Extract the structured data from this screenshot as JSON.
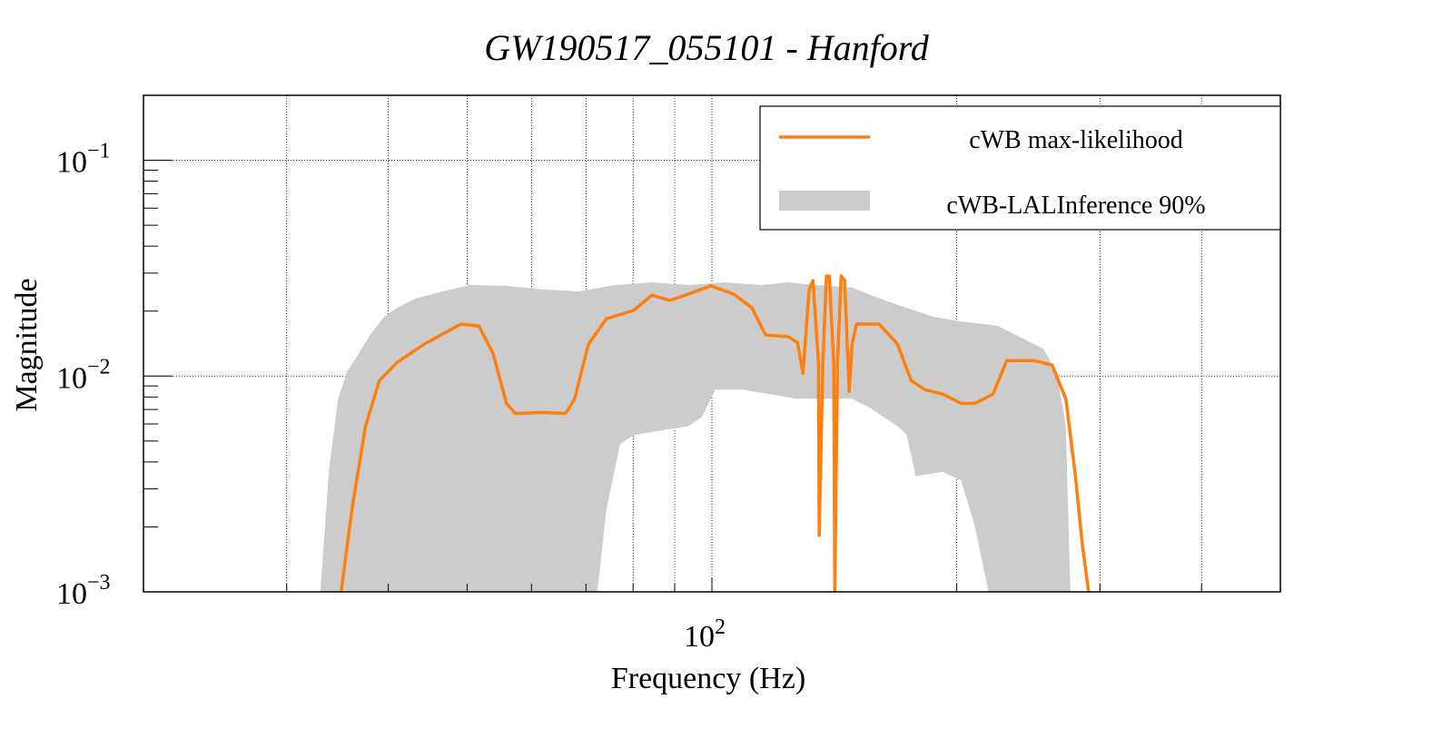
{
  "chart_data": {
    "type": "line",
    "title": "GW190517_055101 - Hanford",
    "xlabel": "Frequency (Hz)",
    "ylabel": "Magnitude",
    "xscale": "log",
    "yscale": "log",
    "xlim": [
      20,
      500
    ],
    "ylim": [
      0.001,
      0.2
    ],
    "grid": true,
    "legend_position": "top-right",
    "x_tick_labels": [
      {
        "base": "10",
        "exp": "2",
        "value": 100
      }
    ],
    "y_tick_labels": [
      {
        "base": "10",
        "exp": "−1",
        "value": 0.1
      },
      {
        "base": "10",
        "exp": "−2",
        "value": 0.01
      },
      {
        "base": "10",
        "exp": "−3",
        "value": 0.001
      }
    ],
    "colors": {
      "line": "#ff7f0e",
      "band": "#cccccc"
    },
    "series": [
      {
        "name": "cWB max-likelihood",
        "kind": "line",
        "x": [
          35.0,
          36.1,
          37.5,
          39.0,
          41.0,
          44.3,
          49.1,
          51.7,
          53.8,
          55.9,
          57.3,
          61.9,
          66.1,
          67.8,
          70.5,
          74.2,
          80.1,
          84.4,
          88.8,
          93.5,
          99.7,
          106.4,
          112.0,
          116.4,
          124.2,
          127.4,
          129.4,
          131.7,
          133.1,
          135.2,
          135.5,
          136.9,
          138.3,
          139.4,
          141.2,
          141.6,
          142.7,
          144.2,
          145.6,
          147.5,
          148.7,
          150.6,
          160.6,
          169.1,
          175.8,
          182.7,
          192.4,
          202.6,
          210.5,
          221.6,
          230.4,
          248.9,
          262.0,
          272.4,
          279.5,
          285.4,
          290.5
        ],
        "y": [
          0.001,
          0.00244,
          0.00586,
          0.00953,
          0.01156,
          0.01406,
          0.01741,
          0.01706,
          0.01275,
          0.00747,
          0.00671,
          0.00678,
          0.00671,
          0.00784,
          0.01406,
          0.01845,
          0.02014,
          0.02374,
          0.0224,
          0.02398,
          0.02618,
          0.02398,
          0.0207,
          0.01549,
          0.0152,
          0.01432,
          0.0103,
          0.02518,
          0.02773,
          0.01156,
          0.00183,
          0.01156,
          0.0291,
          0.0291,
          0.01156,
          0.001,
          0.01156,
          0.0291,
          0.02773,
          0.00847,
          0.01406,
          0.01741,
          0.01741,
          0.01406,
          0.00953,
          0.00865,
          0.00824,
          0.00747,
          0.00747,
          0.00824,
          0.0118,
          0.0118,
          0.01124,
          0.00784,
          0.0036,
          0.00166,
          0.001
        ]
      },
      {
        "name": "cWB-LALInference 90%",
        "kind": "band",
        "upper": {
          "x": [
            33.0,
            33.8,
            34.7,
            35.6,
            36.5,
            38.0,
            39.5,
            41.0,
            43.2,
            46.7,
            50.4,
            55.9,
            61.9,
            68.7,
            76.1,
            84.4,
            93.5,
            103.7,
            114.9,
            124.2,
            134.1,
            148.7,
            160.6,
            173.6,
            187.5,
            202.6,
            224.5,
            236.4,
            255.4,
            265.4,
            272.4,
            275.9
          ],
          "y": [
            0.001,
            0.0036,
            0.00784,
            0.0105,
            0.01214,
            0.01549,
            0.0188,
            0.0207,
            0.02286,
            0.0247,
            0.0264,
            0.0262,
            0.0252,
            0.0247,
            0.0264,
            0.0272,
            0.0264,
            0.0272,
            0.0264,
            0.0272,
            0.0264,
            0.0257,
            0.0229,
            0.0207,
            0.0188,
            0.0179,
            0.0171,
            0.0155,
            0.0134,
            0.0105,
            0.00586,
            0.001
          ]
        },
        "lower": {
          "x": [
            33.0,
            72.3,
            74.2,
            77.1,
            80.1,
            86.6,
            93.5,
            97.2,
            101.0,
            109.1,
            117.9,
            127.4,
            148.7,
            156.5,
            169.1,
            173.6,
            178.0,
            192.4,
            202.6,
            210.5,
            218.8,
            275.9
          ],
          "y": [
            0.001,
            0.001,
            0.00244,
            0.00483,
            0.00532,
            0.0056,
            0.00586,
            0.00646,
            0.00865,
            0.00865,
            0.00824,
            0.00784,
            0.00784,
            0.00712,
            0.00586,
            0.00532,
            0.00344,
            0.0036,
            0.00327,
            0.00201,
            0.001,
            0.001
          ]
        }
      }
    ]
  }
}
